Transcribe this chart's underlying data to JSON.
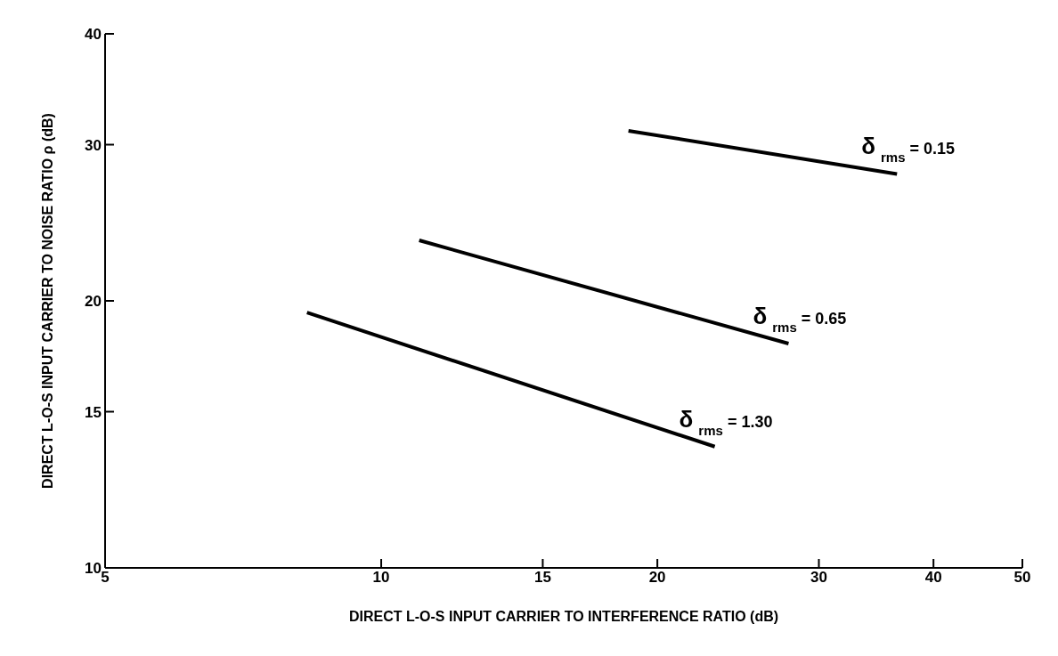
{
  "chart_data": {
    "type": "line",
    "xlabel": "DIRECT L-O-S INPUT CARRIER TO INTERFERENCE RATIO (dB)",
    "ylabel": "DIRECT L-O-S INPUT CARRIER TO NOISE RATIO ρ (dB)",
    "log": "xy",
    "xlim": [
      5,
      50
    ],
    "xticks": [
      5,
      10,
      15,
      20,
      30,
      40,
      50
    ],
    "ylim": [
      10,
      40
    ],
    "yticks": [
      10,
      15,
      20,
      30,
      40
    ],
    "grid": false,
    "legend": false,
    "marker": "none",
    "series": [
      {
        "name": "δ$_{rms}$ = 0.15",
        "color": "#000000",
        "x": [
          18.6,
          36.5
        ],
        "values": [
          31.1,
          27.8
        ]
      },
      {
        "name": "δ$_{rms}$ = 0.65",
        "color": "#000000",
        "x": [
          11.0,
          27.8
        ],
        "values": [
          23.4,
          17.9
        ]
      },
      {
        "name": "δ$_{rms}$ = 1.30",
        "color": "#000000",
        "x": [
          8.3,
          23.1
        ],
        "values": [
          19.4,
          13.7
        ]
      }
    ]
  }
}
